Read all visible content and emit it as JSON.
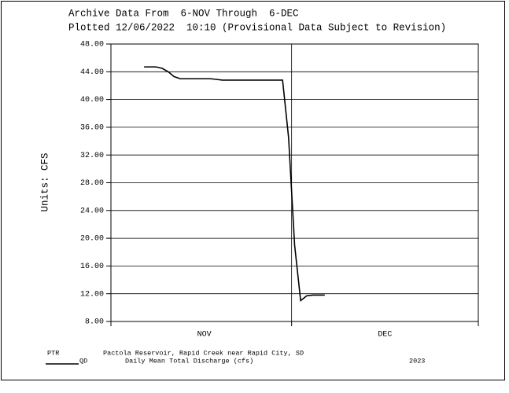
{
  "chart_data": {
    "type": "line",
    "title": "Archive Data From  6-NOV Through  6-DEC",
    "subtitle": "Plotted 12/06/2022  10:10 (Provisional Data Subject to Revision)",
    "y_label": "Units: CFS",
    "categories": [
      null,
      null,
      null,
      null,
      null,
      null,
      null,
      null,
      null,
      null,
      null,
      null,
      null,
      null,
      null,
      "NOV",
      null,
      null,
      null,
      null,
      null,
      null,
      null,
      null,
      null,
      null,
      null,
      null,
      null,
      null,
      null,
      null,
      null,
      null,
      null,
      null,
      null,
      null,
      null,
      null,
      null,
      null,
      null,
      null,
      null,
      "DEC",
      null,
      null,
      null,
      null,
      null,
      null,
      null,
      null,
      null,
      null,
      null,
      null,
      null,
      null,
      null
    ],
    "series": [
      {
        "name": "QD",
        "color": "#000000",
        "values": [
          null,
          null,
          null,
          null,
          null,
          44.7,
          44.7,
          44.7,
          44.5,
          44.0,
          43.3,
          43.0,
          43.0,
          43.0,
          43.0,
          43.0,
          43.0,
          42.9,
          42.8,
          42.8,
          42.8,
          42.8,
          42.8,
          42.8,
          42.8,
          42.8,
          42.8,
          42.8,
          42.8,
          34.5,
          19.0,
          11.0,
          11.7,
          11.8,
          11.8,
          11.8,
          null,
          null,
          null,
          null,
          null,
          null,
          null,
          null,
          null,
          null,
          null,
          null,
          null,
          null,
          null,
          null,
          null,
          null,
          null,
          null,
          null,
          null,
          null,
          null,
          null
        ]
      }
    ],
    "ylim": [
      8,
      48
    ],
    "yticks": [
      {
        "value": 8,
        "label": "8.00"
      },
      {
        "value": 12,
        "label": "12.00"
      },
      {
        "value": 16,
        "label": "16.00"
      },
      {
        "value": 20,
        "label": "20.00"
      },
      {
        "value": 24,
        "label": "24.00"
      },
      {
        "value": 28,
        "label": "28.00"
      },
      {
        "value": 32,
        "label": "32.00"
      },
      {
        "value": 36,
        "label": "36.00"
      },
      {
        "value": 40,
        "label": "40.00"
      },
      {
        "value": 44,
        "label": "44.00"
      },
      {
        "value": 48,
        "label": "48.00"
      }
    ],
    "grid": true,
    "station": "PTR",
    "station_name": "Pactola Reservoir, Rapid Creek near Rapid City, SD",
    "series_description": "Daily Mean Total Discharge (cfs)",
    "year": "2023"
  }
}
